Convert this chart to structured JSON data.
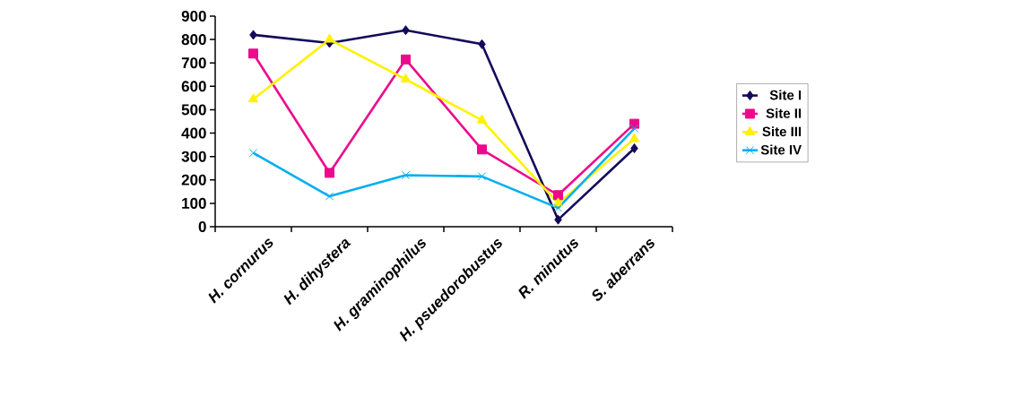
{
  "chart_data": {
    "type": "line",
    "categories": [
      "*H. cornurus*",
      "*H. dihystera*",
      "*H. graminophilus*",
      "*H. psuedorobustus*",
      "*R. minutus*",
      "*S. aberrans*"
    ],
    "series": [
      {
        "name": "Site I",
        "color": "#120a5a",
        "marker": "diamond",
        "values": [
          820,
          785,
          840,
          780,
          30,
          335
        ]
      },
      {
        "name": "Site II",
        "color": "#ec0a8c",
        "marker": "square",
        "values": [
          740,
          230,
          715,
          330,
          135,
          440
        ]
      },
      {
        "name": "Site III",
        "color": "#fff200",
        "marker": "triangle",
        "values": [
          545,
          800,
          630,
          455,
          100,
          375
        ]
      },
      {
        "name": "Site IV",
        "color": "#00aeef",
        "marker": "cross",
        "values": [
          315,
          130,
          220,
          215,
          80,
          420
        ]
      }
    ],
    "ylim": [
      0,
      900
    ],
    "yticks": [
      0,
      100,
      200,
      300,
      400,
      500,
      600,
      700,
      800,
      900
    ],
    "legend": "right",
    "line_style": "solid",
    "grid": false
  }
}
